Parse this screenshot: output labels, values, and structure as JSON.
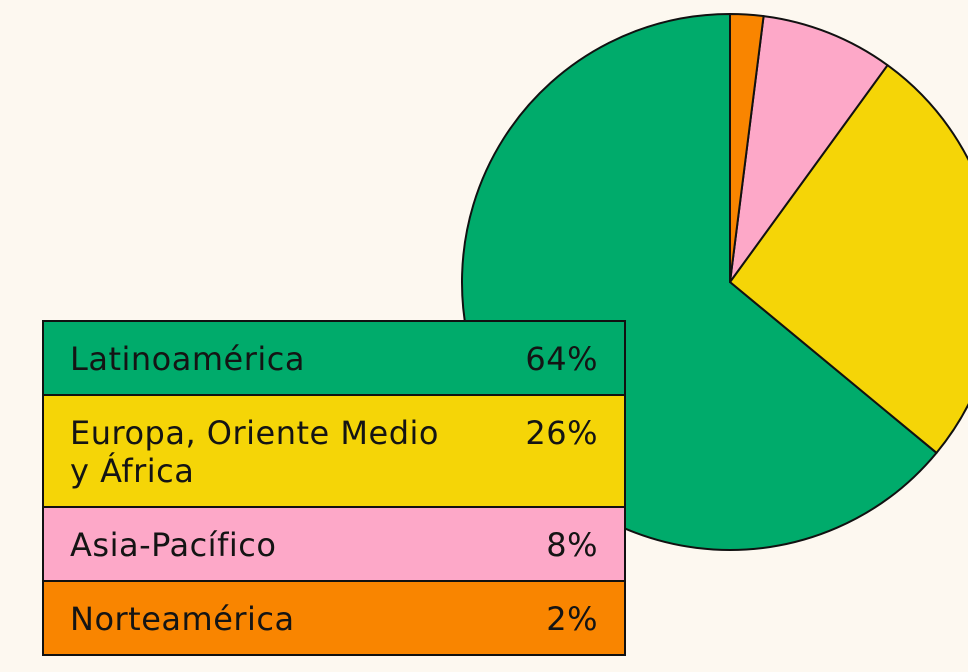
{
  "chart_data": {
    "type": "pie",
    "categories": [
      "Latinoamérica",
      "Europa, Oriente Medio y África",
      "Asia-Pacífico",
      "Norteamérica"
    ],
    "values": [
      64,
      26,
      8,
      2
    ],
    "value_labels": [
      "64%",
      "26%",
      "8%",
      "2%"
    ],
    "colors": [
      "#00ab6b",
      "#f5d507",
      "#fda8c8",
      "#f98500"
    ]
  }
}
